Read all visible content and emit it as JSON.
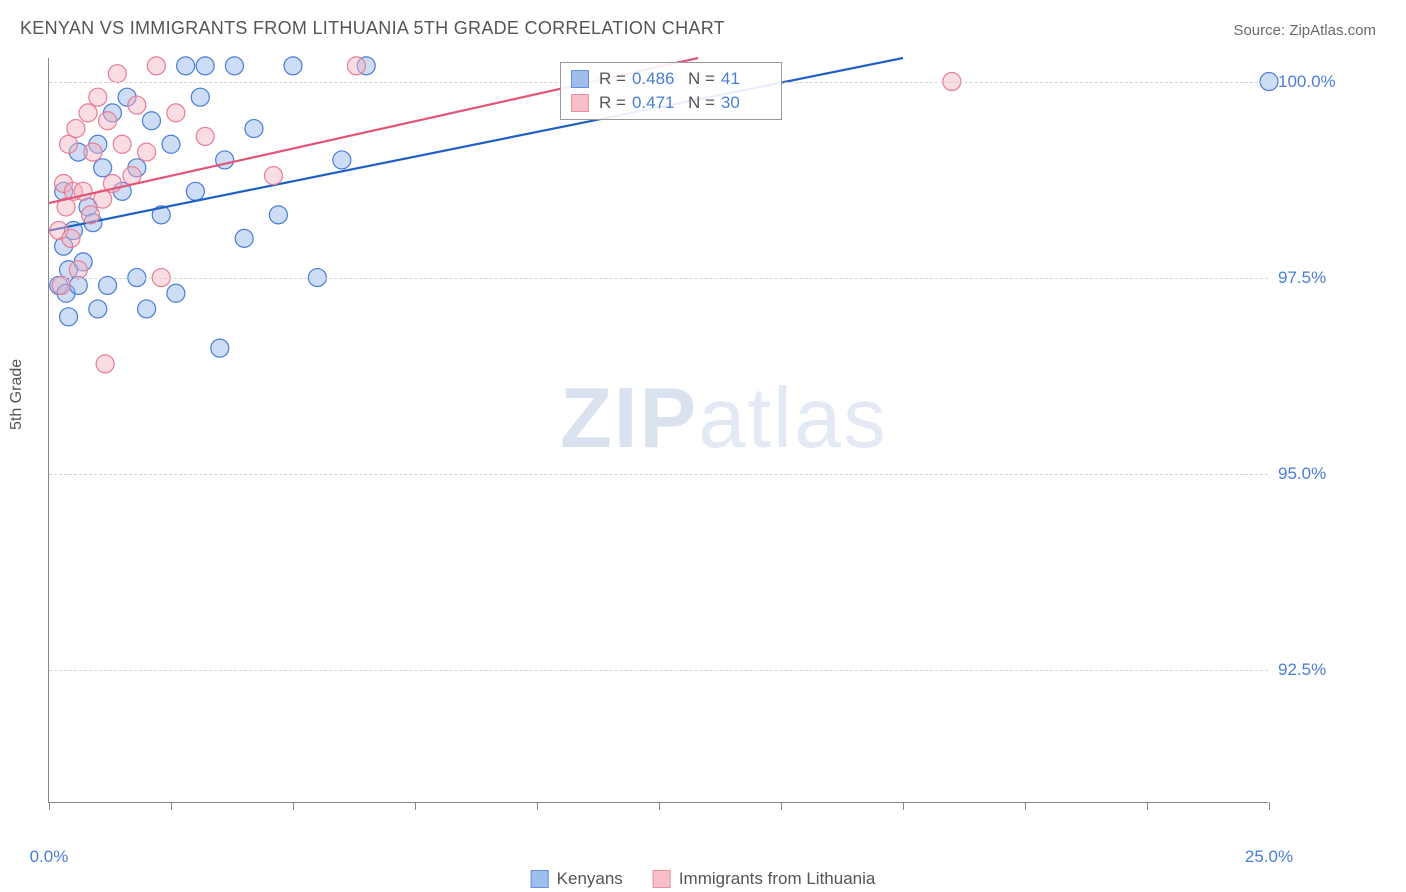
{
  "title": "KENYAN VS IMMIGRANTS FROM LITHUANIA 5TH GRADE CORRELATION CHART",
  "source": "Source: ZipAtlas.com",
  "ylabel": "5th Grade",
  "watermark_bold": "ZIP",
  "watermark_light": "atlas",
  "chart": {
    "type": "scatter",
    "xlim": [
      0,
      25
    ],
    "ylim": [
      90.8,
      100.3
    ],
    "xtick_positions": [
      0,
      2.5,
      5,
      7.5,
      10,
      12.5,
      15,
      17.5,
      20,
      22.5,
      25
    ],
    "xtick_labels": {
      "0": "0.0%",
      "25": "25.0%"
    },
    "ytick_positions": [
      92.5,
      95.0,
      97.5,
      100.0
    ],
    "ytick_labels": [
      "92.5%",
      "95.0%",
      "97.5%",
      "100.0%"
    ],
    "grid_color": "#d4d4d4",
    "background_color": "#ffffff",
    "axis_color": "#888888",
    "tick_label_color": "#4a7dd8",
    "series": [
      {
        "name": "Kenyans",
        "fill_color": "#8fb4e8",
        "fill_opacity": 0.45,
        "stroke_color": "#4a7dd8",
        "line_color": "#1f5fc4",
        "marker_radius": 9,
        "trend": {
          "x0": 0,
          "y0": 98.1,
          "x1": 17.5,
          "y1": 100.3
        },
        "stats": {
          "R_label": "R = ",
          "R": "0.486",
          "N_label": "N = ",
          "N": "41"
        },
        "points": [
          [
            0.2,
            97.4
          ],
          [
            0.3,
            97.9
          ],
          [
            0.3,
            98.6
          ],
          [
            0.35,
            97.3
          ],
          [
            0.4,
            97.0
          ],
          [
            0.4,
            97.6
          ],
          [
            0.5,
            98.1
          ],
          [
            0.6,
            97.4
          ],
          [
            0.6,
            99.1
          ],
          [
            0.7,
            97.7
          ],
          [
            0.8,
            98.4
          ],
          [
            0.9,
            98.2
          ],
          [
            1.0,
            97.1
          ],
          [
            1.0,
            99.2
          ],
          [
            1.1,
            98.9
          ],
          [
            1.2,
            97.4
          ],
          [
            1.3,
            99.6
          ],
          [
            1.5,
            98.6
          ],
          [
            1.6,
            99.8
          ],
          [
            1.8,
            97.5
          ],
          [
            1.8,
            98.9
          ],
          [
            2.0,
            97.1
          ],
          [
            2.1,
            99.5
          ],
          [
            2.3,
            98.3
          ],
          [
            2.5,
            99.2
          ],
          [
            2.6,
            97.3
          ],
          [
            2.8,
            100.2
          ],
          [
            3.0,
            98.6
          ],
          [
            3.1,
            99.8
          ],
          [
            3.2,
            100.2
          ],
          [
            3.5,
            96.6
          ],
          [
            3.6,
            99.0
          ],
          [
            3.8,
            100.2
          ],
          [
            4.0,
            98.0
          ],
          [
            4.2,
            99.4
          ],
          [
            4.7,
            98.3
          ],
          [
            5.0,
            100.2
          ],
          [
            5.5,
            97.5
          ],
          [
            6.0,
            99.0
          ],
          [
            6.5,
            100.2
          ],
          [
            25.0,
            100.0
          ]
        ]
      },
      {
        "name": "Immigrants from Lithuania",
        "fill_color": "#f5b3c0",
        "fill_opacity": 0.45,
        "stroke_color": "#e87d94",
        "line_color": "#e25578",
        "marker_radius": 9,
        "trend": {
          "x0": 0,
          "y0": 98.45,
          "x1": 13.3,
          "y1": 100.3
        },
        "stats": {
          "R_label": "R = ",
          "R": "0.471",
          "N_label": "N = ",
          "N": "30"
        },
        "points": [
          [
            0.2,
            98.1
          ],
          [
            0.25,
            97.4
          ],
          [
            0.3,
            98.7
          ],
          [
            0.35,
            98.4
          ],
          [
            0.4,
            99.2
          ],
          [
            0.45,
            98.0
          ],
          [
            0.5,
            98.6
          ],
          [
            0.55,
            99.4
          ],
          [
            0.6,
            97.6
          ],
          [
            0.7,
            98.6
          ],
          [
            0.8,
            99.6
          ],
          [
            0.85,
            98.3
          ],
          [
            0.9,
            99.1
          ],
          [
            1.0,
            99.8
          ],
          [
            1.1,
            98.5
          ],
          [
            1.15,
            96.4
          ],
          [
            1.2,
            99.5
          ],
          [
            1.3,
            98.7
          ],
          [
            1.4,
            100.1
          ],
          [
            1.5,
            99.2
          ],
          [
            1.7,
            98.8
          ],
          [
            1.8,
            99.7
          ],
          [
            2.0,
            99.1
          ],
          [
            2.2,
            100.2
          ],
          [
            2.3,
            97.5
          ],
          [
            2.6,
            99.6
          ],
          [
            3.2,
            99.3
          ],
          [
            4.6,
            98.8
          ],
          [
            6.3,
            100.2
          ],
          [
            18.5,
            100.0
          ]
        ]
      }
    ]
  },
  "legend": {
    "series1": "Kenyans",
    "series2": "Immigrants from Lithuania"
  }
}
